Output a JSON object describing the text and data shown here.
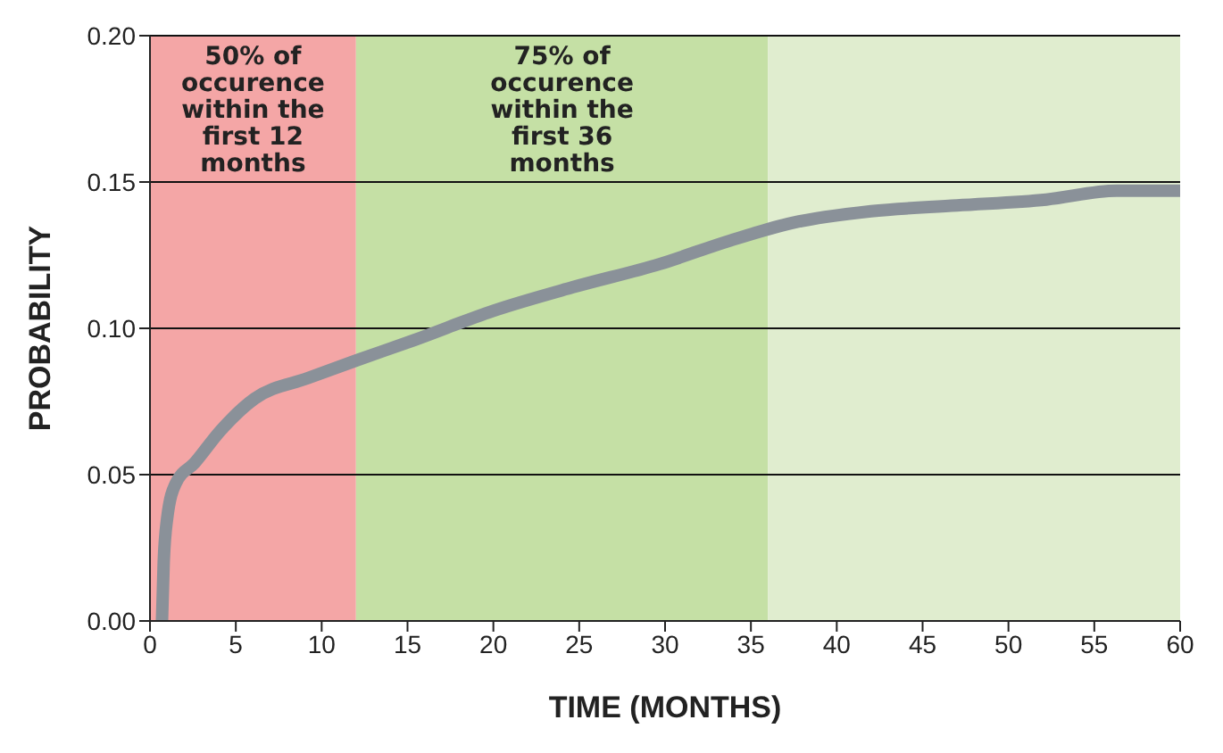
{
  "chart_data": {
    "type": "line",
    "xlabel": "TIME (MONTHS)",
    "ylabel": "PROBABILITY",
    "xlim": [
      0,
      60
    ],
    "xticks": [
      0,
      5,
      10,
      15,
      20,
      25,
      30,
      35,
      40,
      45,
      50,
      55,
      60
    ],
    "ylim": [
      0,
      0.2
    ],
    "yticks": [
      {
        "value": 0,
        "label": "0.00"
      },
      {
        "value": 0.05,
        "label": "0.05"
      },
      {
        "value": 0.1,
        "label": "0.10"
      },
      {
        "value": 0.15,
        "label": "0.15"
      },
      {
        "value": 0.2,
        "label": "0.20"
      }
    ],
    "grid": "y",
    "marker": "none",
    "line_style": "solid",
    "x": [
      0.7,
      0.8,
      1,
      1.5,
      2.6,
      4.1,
      6.1,
      9.2,
      12,
      15.4,
      20,
      24.6,
      29.7,
      33.8,
      37.4,
      42,
      47,
      52.2,
      56.3,
      60
    ],
    "series": [
      {
        "color": "#8a9199",
        "values": [
          0,
          0.02,
          0.035,
          0.047,
          0.054,
          0.065,
          0.076,
          0.083,
          0.089,
          0.096,
          0.106,
          0.114,
          0.122,
          0.13,
          0.136,
          0.14,
          0.142,
          0.144,
          0.147,
          0.147
        ]
      }
    ],
    "bands": [
      {
        "axis": "x",
        "from": 0,
        "to": 12,
        "label": "50% of occurence within the first 12 months",
        "color": "#f4a6a6"
      },
      {
        "axis": "x",
        "from": 12,
        "to": 36,
        "label": "75% of occurence within the first 36 months",
        "color": "#c5e0a5"
      },
      {
        "axis": "x",
        "from": 36,
        "to": 60,
        "color": "#e0edcf"
      }
    ]
  }
}
